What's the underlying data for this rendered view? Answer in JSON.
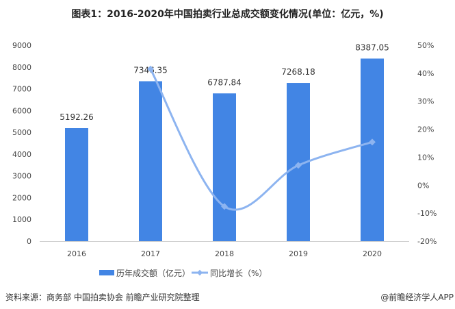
{
  "chart_data": {
    "type": "bar+line",
    "title": "图表1：2016-2020年中国拍卖行业总成交额变化情况(单位：亿元，%)",
    "categories": [
      "2016",
      "2017",
      "2018",
      "2019",
      "2020"
    ],
    "series": [
      {
        "name": "历年成交额（亿元）",
        "type": "bar",
        "axis": "left",
        "color": "#4285e4",
        "values": [
          5192.26,
          7346.35,
          6787.84,
          7268.18,
          8387.05
        ],
        "labels": [
          "5192.26",
          "7346.35",
          "6787.84",
          "7268.18",
          "8387.05"
        ]
      },
      {
        "name": "同比增长（%）",
        "type": "line",
        "axis": "right",
        "color": "#8db4f0",
        "values": [
          null,
          41.5,
          -7.6,
          7.1,
          15.4
        ]
      }
    ],
    "y_left": {
      "range": [
        0,
        9000
      ],
      "ticks": [
        "0",
        "1000",
        "2000",
        "3000",
        "4000",
        "5000",
        "6000",
        "7000",
        "8000",
        "9000"
      ]
    },
    "y_right": {
      "range": [
        -20,
        50
      ],
      "ticks": [
        "-20%",
        "-10%",
        "0%",
        "10%",
        "20%",
        "30%",
        "40%",
        "50%"
      ]
    },
    "grid": false,
    "legend_placement": "bottom"
  },
  "footer": {
    "source": "资料来源：商务部 中国拍卖协会 前瞻产业研究院整理",
    "credit": "@前瞻经济学人APP"
  },
  "watermark": "前瞻产业研究院"
}
